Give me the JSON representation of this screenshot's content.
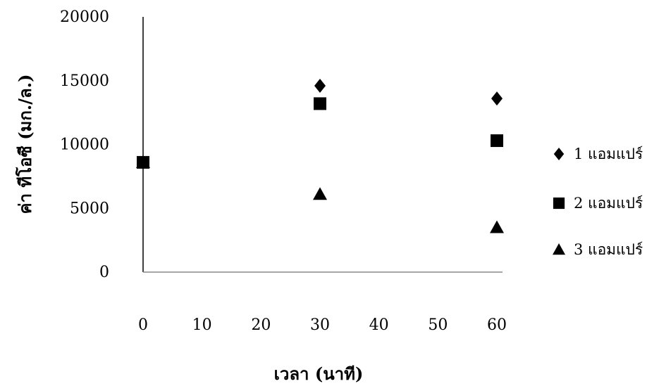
{
  "chart_data": {
    "type": "scatter",
    "title": "",
    "xlabel": "เวลา (นาที)",
    "ylabel": "ค่า ทีโอซี (มก./ล.)",
    "xlim": [
      0,
      60
    ],
    "ylim": [
      0,
      20000
    ],
    "x_ticks": [
      "0",
      "10",
      "20",
      "30",
      "40",
      "50",
      "60"
    ],
    "y_ticks": [
      "0",
      "5000",
      "10000",
      "15000",
      "20000"
    ],
    "grid": false,
    "legend_position": "right",
    "series": [
      {
        "name": "1 แอมแปร์",
        "marker": "diamond",
        "color": "#000000",
        "points": [
          {
            "x": 0,
            "y": 8600
          },
          {
            "x": 30,
            "y": 14600
          },
          {
            "x": 60,
            "y": 13600
          }
        ]
      },
      {
        "name": "2 แอมแปร์",
        "marker": "square",
        "color": "#000000",
        "points": [
          {
            "x": 0,
            "y": 8600
          },
          {
            "x": 30,
            "y": 13200
          },
          {
            "x": 60,
            "y": 10300
          }
        ]
      },
      {
        "name": "3 แอมแปร์",
        "marker": "triangle",
        "color": "#000000",
        "points": [
          {
            "x": 0,
            "y": 8600
          },
          {
            "x": 30,
            "y": 6100
          },
          {
            "x": 60,
            "y": 3500
          }
        ]
      }
    ]
  }
}
